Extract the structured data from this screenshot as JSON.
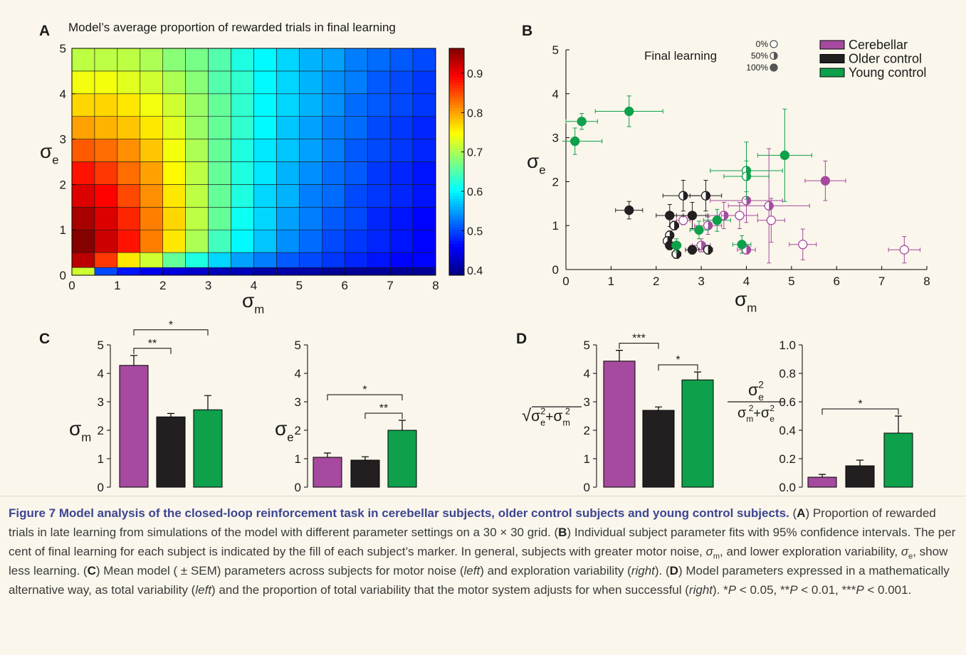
{
  "chart_data": [
    {
      "type": "heatmap",
      "panel": "A",
      "title": "Model’s average proportion of rewarded trials in final learning",
      "xlabel": {
        "base": "σ",
        "sub": "m"
      },
      "ylabel": {
        "base": "σ",
        "sub": "e"
      },
      "x": [
        0,
        0.5,
        1,
        1.5,
        2,
        2.5,
        3,
        3.5,
        4,
        4.5,
        5,
        5.5,
        6,
        6.5,
        7,
        7.5,
        8
      ],
      "y": [
        0,
        0.17,
        0.5,
        1,
        1.5,
        2,
        2.5,
        3,
        3.5,
        4,
        4.5,
        5
      ],
      "z": [
        [
          0.72,
          0.5,
          0.47,
          0.45,
          0.44,
          0.43,
          0.42,
          0.42,
          0.41,
          0.41,
          0.41,
          0.4,
          0.4,
          0.4,
          0.4,
          0.4
        ],
        [
          0.93,
          0.86,
          0.76,
          0.72,
          0.66,
          0.62,
          0.58,
          0.55,
          0.53,
          0.51,
          0.5,
          0.49,
          0.48,
          0.47,
          0.46,
          0.46
        ],
        [
          0.96,
          0.92,
          0.88,
          0.82,
          0.76,
          0.7,
          0.64,
          0.6,
          0.57,
          0.54,
          0.52,
          0.5,
          0.49,
          0.48,
          0.47,
          0.46
        ],
        [
          0.94,
          0.91,
          0.87,
          0.82,
          0.77,
          0.71,
          0.66,
          0.61,
          0.58,
          0.55,
          0.53,
          0.51,
          0.5,
          0.48,
          0.47,
          0.46
        ],
        [
          0.91,
          0.89,
          0.85,
          0.81,
          0.76,
          0.71,
          0.66,
          0.62,
          0.58,
          0.56,
          0.53,
          0.52,
          0.5,
          0.49,
          0.48,
          0.47
        ],
        [
          0.88,
          0.86,
          0.83,
          0.8,
          0.75,
          0.71,
          0.66,
          0.62,
          0.59,
          0.56,
          0.54,
          0.52,
          0.51,
          0.49,
          0.48,
          0.47
        ],
        [
          0.84,
          0.83,
          0.81,
          0.78,
          0.74,
          0.7,
          0.66,
          0.62,
          0.59,
          0.57,
          0.55,
          0.53,
          0.51,
          0.5,
          0.49,
          0.48
        ],
        [
          0.8,
          0.79,
          0.78,
          0.76,
          0.73,
          0.69,
          0.66,
          0.63,
          0.6,
          0.57,
          0.55,
          0.53,
          0.52,
          0.5,
          0.49,
          0.48
        ],
        [
          0.77,
          0.77,
          0.76,
          0.74,
          0.72,
          0.69,
          0.66,
          0.63,
          0.6,
          0.58,
          0.56,
          0.54,
          0.52,
          0.51,
          0.5,
          0.49
        ],
        [
          0.74,
          0.74,
          0.73,
          0.72,
          0.7,
          0.68,
          0.65,
          0.63,
          0.6,
          0.58,
          0.56,
          0.54,
          0.53,
          0.51,
          0.5,
          0.49
        ],
        [
          0.71,
          0.71,
          0.71,
          0.7,
          0.68,
          0.67,
          0.65,
          0.62,
          0.6,
          0.58,
          0.56,
          0.55,
          0.53,
          0.52,
          0.51,
          0.5
        ]
      ],
      "xlim": [
        0,
        8
      ],
      "ylim": [
        0,
        5
      ],
      "xticks": [
        0,
        1,
        2,
        3,
        4,
        5,
        6,
        7,
        8
      ],
      "yticks": [
        0,
        1,
        2,
        3,
        4,
        5
      ],
      "colormap": "jet",
      "clim": [
        0.387,
        0.963
      ],
      "cticks": [
        0.4,
        0.5,
        0.6,
        0.7,
        0.8,
        0.9
      ]
    },
    {
      "type": "scatter",
      "panel": "B",
      "xlabel": {
        "base": "σ",
        "sub": "m"
      },
      "ylabel": {
        "base": "σ",
        "sub": "e"
      },
      "xlim": [
        0,
        8
      ],
      "ylim": [
        0,
        5
      ],
      "xticks": [
        0,
        1,
        2,
        3,
        4,
        5,
        6,
        7,
        8
      ],
      "yticks": [
        0,
        1,
        2,
        3,
        4,
        5
      ],
      "legend_position": "upper right",
      "fill_legend": {
        "title": "Final learning",
        "levels": [
          {
            "value": 0,
            "label": "0%"
          },
          {
            "value": 50,
            "label": "50%"
          },
          {
            "value": 100,
            "label": "100%"
          }
        ]
      },
      "series": [
        {
          "name": "Cerebellar",
          "color": "#a54a9e",
          "x": [
            2.6,
            3.0,
            3.15,
            3.5,
            3.85,
            4.0,
            4.5,
            4.55,
            4.0,
            5.25,
            5.75,
            7.5
          ],
          "y": [
            1.12,
            0.55,
            1.0,
            1.23,
            1.23,
            1.57,
            1.45,
            1.12,
            0.45,
            0.57,
            2.02,
            0.45
          ],
          "xerr": [
            0.15,
            0.2,
            0.3,
            0.4,
            0.4,
            0.8,
            0.9,
            0.3,
            0.2,
            0.3,
            0.45,
            0.35
          ],
          "yerr": [
            0.1,
            0.15,
            0.2,
            0.3,
            0.3,
            0.5,
            1.3,
            0.5,
            0.1,
            0.35,
            0.45,
            0.3
          ],
          "fill": [
            0,
            50,
            50,
            50,
            0,
            50,
            50,
            0,
            50,
            0,
            100,
            0
          ]
        },
        {
          "name": "Older control",
          "color": "#231f20",
          "x": [
            1.4,
            2.6,
            3.1,
            2.3,
            2.8,
            2.3,
            2.25,
            2.3,
            2.45,
            2.4,
            2.8,
            3.15
          ],
          "y": [
            1.35,
            1.68,
            1.68,
            1.23,
            1.23,
            0.78,
            0.65,
            0.55,
            0.35,
            1.0,
            0.45,
            0.45
          ],
          "xerr": [
            0.3,
            0.45,
            0.35,
            0.3,
            0.35,
            0.05,
            0.05,
            0.05,
            0.1,
            0.1,
            0.15,
            0.1
          ],
          "yerr": [
            0.2,
            0.35,
            0.35,
            0.25,
            0.3,
            0.1,
            0.1,
            0.1,
            0.1,
            0.1,
            0.1,
            0.1
          ],
          "fill": [
            100,
            50,
            50,
            100,
            100,
            50,
            50,
            100,
            50,
            50,
            100,
            50
          ]
        },
        {
          "name": "Young control",
          "color": "#0ea04b",
          "x": [
            0.2,
            0.35,
            1.4,
            4.85,
            4.0,
            4.0,
            3.35,
            2.95,
            2.45,
            3.9
          ],
          "y": [
            2.92,
            3.37,
            3.6,
            2.6,
            2.25,
            2.12,
            1.12,
            0.9,
            0.55,
            0.57
          ],
          "xerr": [
            0.6,
            0.35,
            0.75,
            0.6,
            0.8,
            0.5,
            0.3,
            0.2,
            0.1,
            0.2
          ],
          "yerr": [
            0.3,
            0.18,
            0.35,
            1.05,
            0.65,
            0.35,
            0.25,
            0.2,
            0.15,
            0.2
          ],
          "fill": [
            100,
            100,
            100,
            100,
            50,
            50,
            100,
            100,
            100,
            100
          ]
        }
      ]
    },
    {
      "type": "bar",
      "panel": "C",
      "ylabel": {
        "base": "σ",
        "sub": "m"
      },
      "categories": [
        null,
        null,
        null
      ],
      "colors": [
        "#a54a9e",
        "#231f20",
        "#0ea04b"
      ],
      "values": [
        4.28,
        2.47,
        2.72
      ],
      "errors": [
        0.35,
        0.12,
        0.5
      ],
      "ylim": [
        0,
        5
      ],
      "yticks": [
        0,
        1,
        2,
        3,
        4,
        5
      ],
      "annotations": [
        {
          "from": 0,
          "to": 1,
          "text": "**"
        },
        {
          "from": 0,
          "to": 2,
          "text": "*"
        }
      ]
    },
    {
      "type": "bar",
      "ylabel": {
        "base": "σ",
        "sub": "e"
      },
      "categories": [
        null,
        null,
        null
      ],
      "colors": [
        "#a54a9e",
        "#231f20",
        "#0ea04b"
      ],
      "values": [
        1.05,
        0.95,
        2.0
      ],
      "errors": [
        0.15,
        0.12,
        0.35
      ],
      "ylim": [
        0,
        5
      ],
      "yticks": [
        0,
        1,
        2,
        3,
        4,
        5
      ],
      "annotations": [
        {
          "from": 1,
          "to": 2,
          "text": "**"
        },
        {
          "from": 0,
          "to": 2,
          "text": "*"
        }
      ]
    },
    {
      "type": "bar",
      "panel": "D",
      "ylabel": {
        "root": "√",
        "terms": [
          {
            "base": "σ",
            "sub": "e",
            "sup": "2"
          },
          {
            "base": "σ",
            "sub": "m",
            "sup": "2"
          }
        ],
        "op": "+"
      },
      "categories": [
        null,
        null,
        null
      ],
      "colors": [
        "#a54a9e",
        "#231f20",
        "#0ea04b"
      ],
      "values": [
        4.43,
        2.7,
        3.77
      ],
      "errors": [
        0.38,
        0.12,
        0.28
      ],
      "ylim": [
        0,
        5
      ],
      "yticks": [
        0,
        1,
        2,
        3,
        4,
        5
      ],
      "annotations": [
        {
          "from": 0,
          "to": 1,
          "text": "***"
        },
        {
          "from": 1,
          "to": 2,
          "text": "*"
        }
      ]
    },
    {
      "type": "bar",
      "ylabel": {
        "numerator": {
          "base": "σ",
          "sub": "e",
          "sup": "2"
        },
        "denominator": {
          "terms": [
            {
              "base": "σ",
              "sub": "m",
              "sup": "2"
            },
            {
              "base": "σ",
              "sub": "e",
              "sup": "2"
            }
          ],
          "op": "+"
        }
      },
      "categories": [
        null,
        null,
        null
      ],
      "colors": [
        "#a54a9e",
        "#231f20",
        "#0ea04b"
      ],
      "values": [
        0.07,
        0.15,
        0.38
      ],
      "errors": [
        0.02,
        0.04,
        0.12
      ],
      "ylim": [
        0,
        1
      ],
      "yticks": [
        {
          "value": 0,
          "label": "0.0"
        },
        {
          "value": 0.2,
          "label": "0.2"
        },
        {
          "value": 0.4,
          "label": "0.4"
        },
        {
          "value": 0.6,
          "label": "0.6"
        },
        {
          "value": 0.8,
          "label": "0.8"
        },
        {
          "value": 1,
          "label": "1.0"
        }
      ],
      "annotations": [
        {
          "from": 0,
          "to": 2,
          "text": "*"
        }
      ]
    }
  ],
  "caption": {
    "title": "Figure 7  Model analysis of the closed-loop reinforcement task in cerebellar subjects, older control subjects and young control subjects.",
    "body": [
      "(",
      "A",
      ") Proportion of rewarded trials in late learning from simulations of the model with different parameter settings on a 30 × 30 grid. (",
      "B",
      ") Individual subject parameter fits with 95% confidence intervals. The per cent of final learning for each subject is indicated by the fill of each subject’s marker. In general, subjects with greater motor noise, ",
      "σ",
      "m",
      ", and lower exploration variability, ",
      "σ",
      "e",
      ", show less learning. (",
      "C",
      ") Mean model ( ± SEM) parameters across subjects for motor noise (",
      "left",
      ") and exploration variability (",
      "right",
      "). (",
      "D",
      ") Model parameters expressed in a mathematically alternative way, as total variability (",
      "left",
      ") and the proportion of total variability that the motor system adjusts for when successful (",
      "right",
      "). *",
      "P",
      " < 0.05, **",
      "P",
      " < 0.01, ***",
      "P",
      " < 0.001."
    ]
  }
}
